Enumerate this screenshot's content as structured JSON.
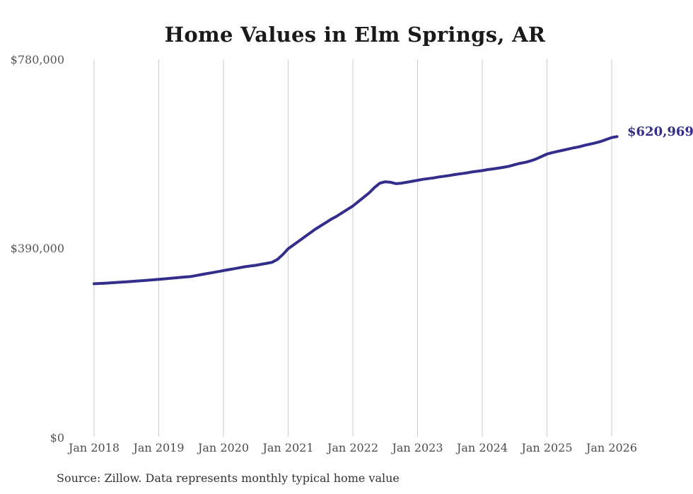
{
  "title": "Home Values in Elm Springs, AR",
  "source_note": "Source: Zillow. Data represents monthly typical home value",
  "end_label": "$620,969",
  "colors": {
    "line": "#332d8c",
    "end_label": "#332d8c",
    "gridline": "#cccccc",
    "title_text": "#1a1a1a",
    "axis_label_text": "#555555",
    "source_text": "#333333",
    "background": "#ffffff"
  },
  "chart_data": {
    "type": "line",
    "title": "Home Values in Elm Springs, AR",
    "xlabel": "",
    "ylabel": "",
    "ylim": [
      0,
      780000
    ],
    "grid": "vertical-only",
    "legend": "none",
    "y_ticks": [
      {
        "value": 0,
        "label": "$0"
      },
      {
        "value": 390000,
        "label": "$390,000"
      },
      {
        "value": 780000,
        "label": "$780,000"
      }
    ],
    "x_ticks": [
      "Jan 2018",
      "Jan 2019",
      "Jan 2020",
      "Jan 2021",
      "Jan 2022",
      "Jan 2023",
      "Jan 2024",
      "Jan 2025",
      "Jan 2026"
    ],
    "x_start_month": "2018-01",
    "x_interval": "month",
    "annotation": {
      "text": "$620,969",
      "attach": "last-point"
    },
    "series": [
      {
        "name": "Monthly typical home value",
        "final_value": 620969,
        "values": [
          318000,
          318600,
          319200,
          319800,
          320500,
          321200,
          322000,
          322800,
          323600,
          324400,
          325200,
          326100,
          327000,
          328000,
          329000,
          330000,
          331000,
          332000,
          333000,
          335000,
          337000,
          339000,
          341000,
          343000,
          345000,
          347000,
          349000,
          351000,
          353000,
          354500,
          356000,
          358000,
          360000,
          362000,
          368000,
          378000,
          390000,
          398000,
          406000,
          414000,
          422000,
          430000,
          437000,
          444000,
          451000,
          457000,
          464000,
          471000,
          478000,
          487000,
          496000,
          505000,
          516000,
          525000,
          528000,
          527000,
          524000,
          525000,
          527000,
          529000,
          531000,
          533000,
          534500,
          536000,
          538000,
          539500,
          541000,
          543000,
          544500,
          546000,
          548000,
          549500,
          551000,
          553000,
          554500,
          556000,
          558000,
          560000,
          563000,
          566000,
          568000,
          571000,
          575000,
          580000,
          585000,
          588000,
          590500,
          593000,
          595500,
          598000,
          600000,
          603000,
          605500,
          608000,
          611000,
          615000,
          619000,
          620969
        ]
      }
    ]
  }
}
